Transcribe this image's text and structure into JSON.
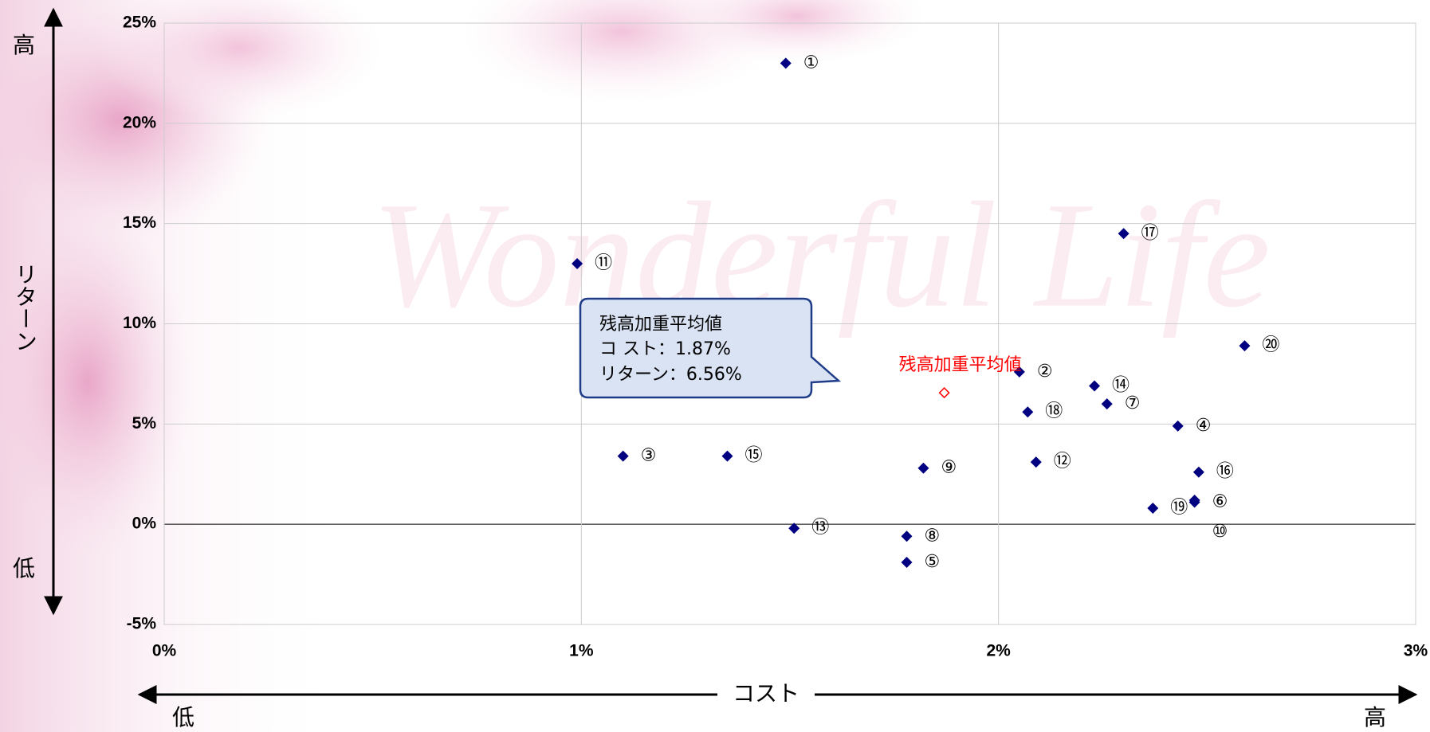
{
  "chart_data": {
    "type": "scatter",
    "watermark": "Wonderful Life",
    "xlim": [
      0,
      3
    ],
    "ylim": [
      -5,
      25
    ],
    "xticks": [
      {
        "value": 0,
        "label": "0%"
      },
      {
        "value": 1,
        "label": "1%"
      },
      {
        "value": 2,
        "label": "2%"
      },
      {
        "value": 3,
        "label": "3%"
      }
    ],
    "yticks": [
      {
        "value": -5,
        "label": "-5%"
      },
      {
        "value": 0,
        "label": "0%"
      },
      {
        "value": 5,
        "label": "5%"
      },
      {
        "value": 10,
        "label": "10%"
      },
      {
        "value": 15,
        "label": "15%"
      },
      {
        "value": 20,
        "label": "20%"
      },
      {
        "value": 25,
        "label": "25%"
      }
    ],
    "grid": true,
    "color": "#000080",
    "point_labels": [
      "①",
      "②",
      "③",
      "④",
      "⑤",
      "⑥",
      "⑦",
      "⑧",
      "⑨",
      "⑩",
      "⑪",
      "⑫",
      "⑬",
      "⑭",
      "⑮",
      "⑯",
      "⑰",
      "⑱",
      "⑲",
      "⑳"
    ],
    "x": [
      1.49,
      2.05,
      1.1,
      2.43,
      1.78,
      2.47,
      2.26,
      1.78,
      1.82,
      2.47,
      0.99,
      2.09,
      1.51,
      2.23,
      1.35,
      2.48,
      2.3,
      2.07,
      2.37,
      2.59
    ],
    "values": [
      23.0,
      7.6,
      3.4,
      4.9,
      -1.9,
      1.1,
      6.0,
      -0.6,
      2.8,
      1.2,
      13.0,
      3.1,
      -0.2,
      6.9,
      3.4,
      2.6,
      14.5,
      5.6,
      0.8,
      8.9
    ],
    "average": {
      "label": "残高加重平均値",
      "x": 1.87,
      "y": 6.56,
      "color": "#ff0000"
    },
    "callout": {
      "title": "残高加重平均値",
      "lines": [
        "コ スト：1.87%",
        "リターン：6.56%"
      ]
    },
    "y_axis": {
      "label": "リターン",
      "high": "高",
      "low": "低"
    },
    "x_axis": {
      "label": "コスト",
      "low": "低",
      "high": "高"
    }
  }
}
